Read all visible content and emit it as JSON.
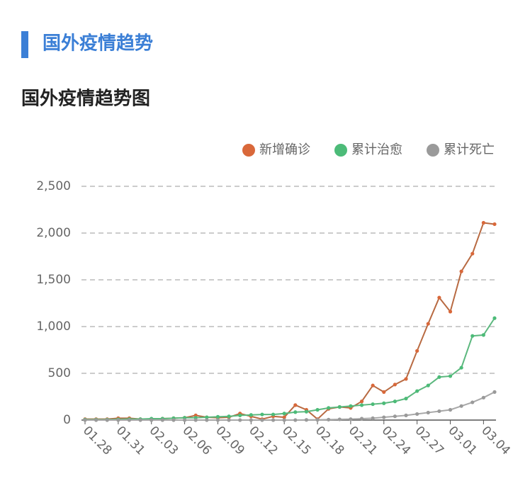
{
  "header": {
    "title": "国外疫情趋势"
  },
  "chart_data": {
    "type": "line",
    "title": "国外疫情趋势图",
    "categories": [
      "01.28",
      null,
      null,
      "01.31",
      null,
      null,
      "02.03",
      null,
      null,
      "02.06",
      null,
      null,
      "02.09",
      null,
      null,
      "02.12",
      null,
      null,
      "02.15",
      null,
      null,
      "02.18",
      null,
      null,
      "02.21",
      null,
      null,
      "02.24",
      null,
      null,
      "02.27",
      null,
      null,
      "03.01",
      null,
      null,
      "03.04",
      null
    ],
    "series": [
      {
        "name": "新增确诊",
        "color": "#d9683a",
        "line_color": "#b86a42",
        "values": [
          10,
          10,
          10,
          20,
          20,
          10,
          10,
          15,
          20,
          25,
          50,
          30,
          25,
          30,
          70,
          40,
          10,
          40,
          30,
          160,
          110,
          10,
          120,
          140,
          130,
          200,
          370,
          300,
          380,
          440,
          740,
          1030,
          1310,
          1160,
          1590,
          1780,
          2110,
          2095
        ]
      },
      {
        "name": "累计治愈",
        "color": "#4cbb78",
        "line_color": "#5cb87e",
        "values": [
          5,
          5,
          5,
          8,
          10,
          10,
          15,
          15,
          20,
          25,
          25,
          30,
          35,
          40,
          50,
          55,
          60,
          60,
          70,
          85,
          90,
          110,
          130,
          140,
          150,
          160,
          170,
          180,
          200,
          230,
          310,
          370,
          460,
          470,
          560,
          900,
          910,
          1090
        ]
      },
      {
        "name": "累计死亡",
        "color": "#9a9a9a",
        "line_color": "#a8a8a8",
        "values": [
          0,
          0,
          0,
          0,
          0,
          0,
          0,
          0,
          0,
          0,
          0,
          0,
          0,
          0,
          0,
          0,
          0,
          0,
          0,
          0,
          2,
          3,
          5,
          8,
          10,
          15,
          20,
          30,
          40,
          50,
          65,
          80,
          95,
          110,
          150,
          190,
          240,
          300
        ]
      }
    ],
    "ylim": [
      0,
      2500
    ],
    "yticks": [
      0,
      500,
      {
        "value": 1000,
        "label": "1,000"
      },
      {
        "value": 1500,
        "label": "1,500"
      },
      {
        "value": 2000,
        "label": "2,000"
      },
      {
        "value": 2500,
        "label": "2,500"
      }
    ],
    "grid": true,
    "legend": "top-right"
  }
}
